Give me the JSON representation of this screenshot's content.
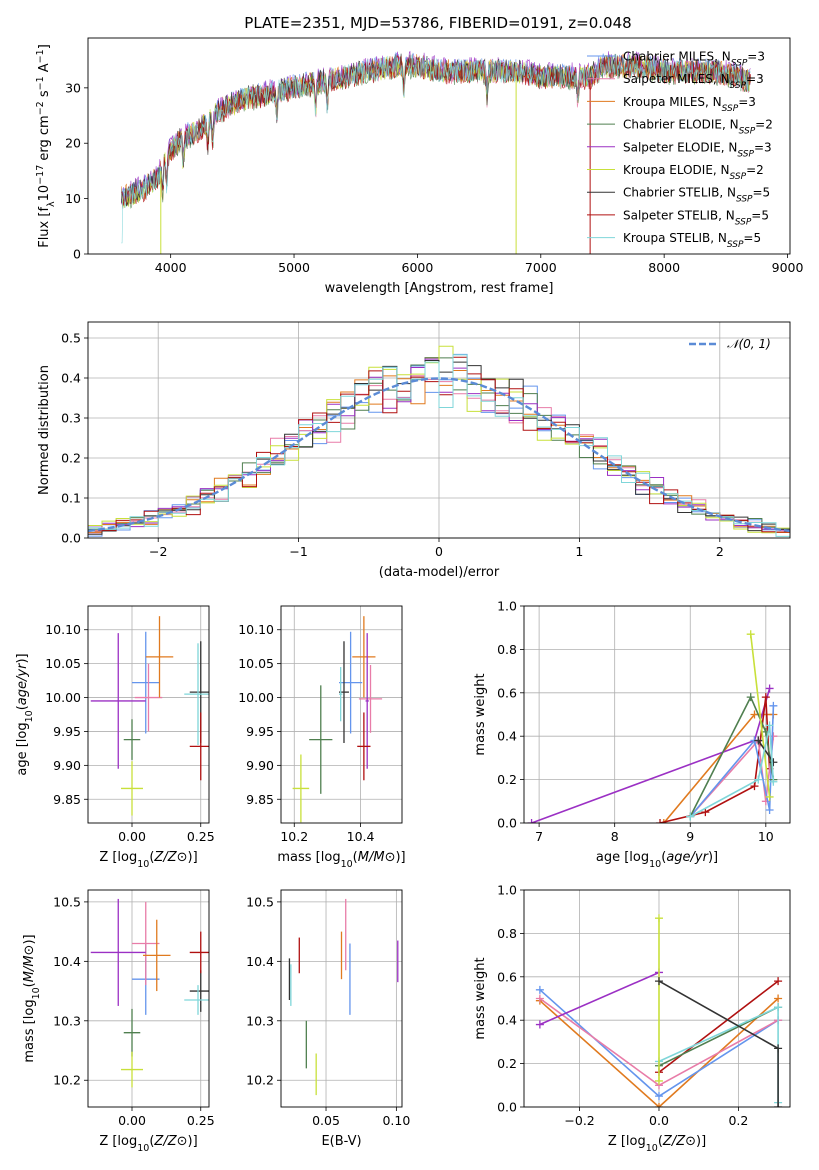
{
  "figure": {
    "title": "PLATE=2351, MJD=53786, FIBERID=0191, z=0.048"
  },
  "chart_data": [
    {
      "id": "spectrum",
      "type": "line",
      "title": "PLATE=2351, MJD=53786, FIBERID=0191, z=0.048",
      "xlabel": "wavelength [Angstrom, rest frame]",
      "ylabel": "Flux [f_λ 10^-17 erg cm^-2 s^-1 A^-1]",
      "xlim": [
        3330,
        9020
      ],
      "ylim": [
        0,
        39
      ],
      "xticks": [
        4000,
        5000,
        6000,
        7000,
        8000,
        9000
      ],
      "yticks": [
        0,
        10,
        20,
        30
      ],
      "grid": false,
      "legend_position": "top-right",
      "continuum": {
        "x": [
          3600,
          3700,
          3800,
          3900,
          4000,
          4100,
          4200,
          4300,
          4400,
          4500,
          4600,
          4800,
          5000,
          5200,
          5400,
          5600,
          5800,
          6000,
          6200,
          6400,
          6600,
          6800,
          7000,
          7200,
          7400,
          7500,
          7600,
          7800,
          8000,
          8200,
          8400,
          8600,
          8700
        ],
        "y": [
          10,
          11,
          12,
          14,
          19,
          21,
          22,
          24,
          26,
          27,
          28,
          29,
          30,
          31,
          32,
          33,
          34,
          34,
          33,
          33,
          33,
          33,
          32,
          32,
          32,
          34,
          34,
          34,
          33,
          33,
          33,
          32,
          31
        ]
      },
      "series": [
        {
          "name": "Chabrier MILES",
          "nssp": "3",
          "color": "#6495ed",
          "offset": 0.3
        },
        {
          "name": "Salpeter MILES",
          "nssp": "3",
          "color": "#e87ca8",
          "offset": -0.2
        },
        {
          "name": "Kroupa MILES",
          "nssp": "3",
          "color": "#e07a1f",
          "offset": 0.1
        },
        {
          "name": "Chabrier ELODIE",
          "nssp": "2",
          "color": "#4f7f4f",
          "offset": -0.4
        },
        {
          "name": "Salpeter ELODIE",
          "nssp": "3",
          "color": "#9b30c4",
          "offset": 0.5
        },
        {
          "name": "Kroupa ELODIE",
          "nssp": "2",
          "color": "#c8e03a",
          "offset": -0.1
        },
        {
          "name": "Chabrier STELIB",
          "nssp": "5",
          "color": "#333333",
          "offset": 0.2
        },
        {
          "name": "Salpeter STELIB",
          "nssp": "5",
          "color": "#b01010",
          "offset": -0.3
        },
        {
          "name": "Kroupa STELIB",
          "nssp": "5",
          "color": "#7fd6d9",
          "offset": 0.0
        }
      ],
      "drops": [
        {
          "x": 3920,
          "color": "#c8e03a"
        },
        {
          "x": 6800,
          "color": "#c8e03a"
        },
        {
          "x": 7400,
          "color": "#b01010"
        }
      ]
    },
    {
      "id": "residuals",
      "type": "line",
      "xlabel": "(data-model)/error",
      "ylabel": "Normed distribution",
      "xlim": [
        -2.5,
        2.5
      ],
      "ylim": [
        0,
        0.54
      ],
      "xticks": [
        -2,
        -1,
        0,
        1,
        2
      ],
      "yticks": [
        0.0,
        0.1,
        0.2,
        0.3,
        0.4,
        0.5
      ],
      "grid": true,
      "legend_position": "top-right",
      "gaussian_label": "𝒩(0, 1)",
      "gaussian_color": "#5b8bd6",
      "bin_width": 0.1
    },
    {
      "id": "age-vs-Z",
      "type": "scatter",
      "xlabel": "Z [log10(Z/Z⊙)]",
      "ylabel": "age [log10(age/yr)]",
      "xlim": [
        -0.16,
        0.28
      ],
      "ylim": [
        9.815,
        10.135
      ],
      "xticks": [
        0.0,
        0.25
      ],
      "xticklabels": [
        "0.00",
        "0.25"
      ],
      "yticks": [
        9.85,
        9.9,
        9.95,
        10.0,
        10.05,
        10.1
      ],
      "yticklabels": [
        "9.85",
        "9.90",
        "9.95",
        "10.00",
        "10.05",
        "10.10"
      ],
      "grid": true,
      "points": [
        {
          "color": "#6495ed",
          "x": 0.05,
          "xerr": 0.05,
          "y": 10.022,
          "yerr": 0.075
        },
        {
          "color": "#e87ca8",
          "x": 0.06,
          "xerr": 0.05,
          "y": 10.0,
          "yerr": 0.05
        },
        {
          "color": "#e07a1f",
          "x": 0.1,
          "xerr": 0.05,
          "y": 10.06,
          "yerr": 0.06
        },
        {
          "color": "#4f7f4f",
          "x": 0.0,
          "xerr": 0.03,
          "y": 9.938,
          "yerr": 0.03
        },
        {
          "color": "#9b30c4",
          "x": -0.05,
          "xerr": 0.1,
          "y": 9.995,
          "yerr": 0.1
        },
        {
          "color": "#c8e03a",
          "x": 0.0,
          "xerr": 0.04,
          "y": 9.866,
          "yerr": 0.04
        },
        {
          "color": "#333333",
          "x": 0.25,
          "xerr": 0.04,
          "y": 10.008,
          "yerr": 0.075
        },
        {
          "color": "#b01010",
          "x": 0.25,
          "xerr": 0.04,
          "y": 9.928,
          "yerr": 0.05
        },
        {
          "color": "#7fd6d9",
          "x": 0.24,
          "xerr": 0.05,
          "y": 10.005,
          "yerr": 0.075
        }
      ]
    },
    {
      "id": "age-vs-mass",
      "type": "scatter",
      "xlabel": "mass [log10(M/M⊙)]",
      "ylabel": "",
      "xlim": [
        10.16,
        10.525
      ],
      "ylim": [
        9.815,
        10.135
      ],
      "xticks": [
        10.2,
        10.4
      ],
      "xticklabels": [
        "10.2",
        "10.4"
      ],
      "yticks": [
        9.85,
        9.9,
        9.95,
        10.0,
        10.05,
        10.1
      ],
      "yticklabels": [
        "9.85",
        "9.90",
        "9.95",
        "10.00",
        "10.05",
        "10.10"
      ],
      "grid": true,
      "points": [
        {
          "color": "#6495ed",
          "x": 10.37,
          "xerr": 0.035,
          "y": 10.022,
          "yerr": 0.075
        },
        {
          "color": "#e87ca8",
          "x": 10.43,
          "xerr": 0.035,
          "y": 9.998,
          "yerr": 0.05
        },
        {
          "color": "#e07a1f",
          "x": 10.41,
          "xerr": 0.035,
          "y": 10.06,
          "yerr": 0.06
        },
        {
          "color": "#4f7f4f",
          "x": 10.28,
          "xerr": 0.035,
          "y": 9.938,
          "yerr": 0.08
        },
        {
          "color": "#9b30c4",
          "x": 10.42,
          "xerr": 0.005,
          "y": 9.995,
          "yerr": 0.1
        },
        {
          "color": "#c8e03a",
          "x": 10.22,
          "xerr": 0.025,
          "y": 9.866,
          "yerr": 0.05
        },
        {
          "color": "#333333",
          "x": 10.35,
          "xerr": 0.015,
          "y": 10.008,
          "yerr": 0.075
        },
        {
          "color": "#b01010",
          "x": 10.41,
          "xerr": 0.02,
          "y": 9.928,
          "yerr": 0.05
        },
        {
          "color": "#7fd6d9",
          "x": 10.34,
          "xerr": 0.005,
          "y": 10.005,
          "yerr": 0.04
        }
      ]
    },
    {
      "id": "weight-vs-age",
      "type": "line",
      "xlabel": "age [log10(age/yr)]",
      "ylabel": "mass weight",
      "xlim": [
        6.8,
        10.32
      ],
      "ylim": [
        0,
        1
      ],
      "xticks": [
        7,
        8,
        9,
        10
      ],
      "xticklabels": [
        "7",
        "8",
        "9",
        "10"
      ],
      "yticks": [
        0.0,
        0.2,
        0.4,
        0.6,
        0.8,
        1.0
      ],
      "yticklabels": [
        "0.0",
        "0.2",
        "0.4",
        "0.6",
        "0.8",
        "1.0"
      ],
      "grid": true,
      "series": [
        {
          "color": "#e07a1f",
          "x": [
            8.65,
            9.85,
            10.1
          ],
          "y": [
            0.0,
            0.5,
            0.5
          ]
        },
        {
          "color": "#9b30c4",
          "x": [
            6.9,
            9.85,
            10.05
          ],
          "y": [
            0.0,
            0.38,
            0.62
          ]
        },
        {
          "color": "#b01010",
          "x": [
            8.6,
            9.2,
            9.85,
            10.0,
            10.05
          ],
          "y": [
            0.0,
            0.05,
            0.17,
            0.58,
            0.25
          ]
        },
        {
          "color": "#e87ca8",
          "x": [
            9.0,
            9.9,
            10.0,
            10.1
          ],
          "y": [
            0.03,
            0.38,
            0.1,
            0.4
          ]
        },
        {
          "color": "#6495ed",
          "x": [
            9.0,
            9.85,
            10.05,
            10.1
          ],
          "y": [
            0.03,
            0.38,
            0.06,
            0.54
          ]
        },
        {
          "color": "#4f7f4f",
          "x": [
            9.0,
            9.8,
            10.0,
            10.1
          ],
          "y": [
            0.03,
            0.58,
            0.42,
            0.2
          ]
        },
        {
          "color": "#c8e03a",
          "x": [
            9.8,
            10.05
          ],
          "y": [
            0.87,
            0.12
          ]
        },
        {
          "color": "#333333",
          "x": [
            9.9,
            10.1
          ],
          "y": [
            0.38,
            0.28
          ]
        },
        {
          "color": "#7fd6d9",
          "x": [
            9.0,
            9.9,
            10.05,
            10.1
          ],
          "y": [
            0.03,
            0.2,
            0.45,
            0.19
          ]
        }
      ]
    },
    {
      "id": "mass-vs-Z",
      "type": "scatter",
      "xlabel": "Z [log10(Z/Z⊙)]",
      "ylabel": "mass [log10(M/M⊙)]",
      "xlim": [
        -0.16,
        0.28
      ],
      "ylim": [
        10.155,
        10.52
      ],
      "xticks": [
        0.0,
        0.25
      ],
      "xticklabels": [
        "0.00",
        "0.25"
      ],
      "yticks": [
        10.2,
        10.3,
        10.4,
        10.5
      ],
      "yticklabels": [
        "10.2",
        "10.3",
        "10.4",
        "10.5"
      ],
      "grid": true,
      "points": [
        {
          "color": "#6495ed",
          "x": 0.05,
          "xerr": 0.05,
          "y": 10.37,
          "yerr": 0.06
        },
        {
          "color": "#e87ca8",
          "x": 0.05,
          "xerr": 0.05,
          "y": 10.43,
          "yerr": 0.07
        },
        {
          "color": "#e07a1f",
          "x": 0.09,
          "xerr": 0.05,
          "y": 10.41,
          "yerr": 0.06
        },
        {
          "color": "#4f7f4f",
          "x": 0.0,
          "xerr": 0.03,
          "y": 10.28,
          "yerr": 0.04
        },
        {
          "color": "#9b30c4",
          "x": -0.05,
          "xerr": 0.1,
          "y": 10.415,
          "yerr": 0.09
        },
        {
          "color": "#c8e03a",
          "x": 0.0,
          "xerr": 0.04,
          "y": 10.218,
          "yerr": 0.03
        },
        {
          "color": "#333333",
          "x": 0.25,
          "xerr": 0.04,
          "y": 10.35,
          "yerr": 0.035
        },
        {
          "color": "#b01010",
          "x": 0.25,
          "xerr": 0.04,
          "y": 10.415,
          "yerr": 0.035
        },
        {
          "color": "#7fd6d9",
          "x": 0.24,
          "xerr": 0.05,
          "y": 10.335,
          "yerr": 0.025
        }
      ]
    },
    {
      "id": "mass-vs-EBV",
      "type": "scatter",
      "xlabel": "E(B-V)",
      "ylabel": "",
      "xlim": [
        0.018,
        0.104
      ],
      "ylim": [
        10.155,
        10.52
      ],
      "xticks": [
        0.05,
        0.1
      ],
      "xticklabels": [
        "0.05",
        "0.10"
      ],
      "yticks": [
        10.2,
        10.3,
        10.4,
        10.5
      ],
      "yticklabels": [
        "10.2",
        "10.3",
        "10.4",
        "10.5"
      ],
      "grid": true,
      "points": [
        {
          "color": "#6495ed",
          "x": 0.067,
          "y": 10.37,
          "yerr": 0.06
        },
        {
          "color": "#e87ca8",
          "x": 0.064,
          "y": 10.445,
          "yerr": 0.06
        },
        {
          "color": "#e07a1f",
          "x": 0.061,
          "y": 10.41,
          "yerr": 0.04
        },
        {
          "color": "#4f7f4f",
          "x": 0.036,
          "y": 10.26,
          "yerr": 0.04
        },
        {
          "color": "#9b30c4",
          "x": 0.101,
          "y": 10.4,
          "yerr": 0.035
        },
        {
          "color": "#c8e03a",
          "x": 0.043,
          "y": 10.21,
          "yerr": 0.035
        },
        {
          "color": "#333333",
          "x": 0.024,
          "y": 10.37,
          "yerr": 0.035
        },
        {
          "color": "#b01010",
          "x": 0.031,
          "y": 10.41,
          "yerr": 0.03
        },
        {
          "color": "#7fd6d9",
          "x": 0.025,
          "y": 10.36,
          "yerr": 0.035
        }
      ]
    },
    {
      "id": "weight-vs-Z",
      "type": "line",
      "xlabel": "Z [log10(Z/Z⊙)]",
      "ylabel": "mass weight",
      "xlim": [
        -0.34,
        0.33
      ],
      "ylim": [
        0,
        1
      ],
      "xticks": [
        -0.2,
        0.0,
        0.2
      ],
      "xticklabels": [
        "−0.2",
        "0.0",
        "0.2"
      ],
      "yticks": [
        0.0,
        0.2,
        0.4,
        0.6,
        0.8,
        1.0
      ],
      "yticklabels": [
        "0.0",
        "0.2",
        "0.4",
        "0.6",
        "0.8",
        "1.0"
      ],
      "grid": true,
      "series": [
        {
          "color": "#e07a1f",
          "x": [
            -0.3,
            0.0,
            0.3
          ],
          "y": [
            0.49,
            0.0,
            0.5
          ]
        },
        {
          "color": "#6495ed",
          "x": [
            -0.3,
            0.0,
            0.3
          ],
          "y": [
            0.54,
            0.05,
            0.4
          ]
        },
        {
          "color": "#e87ca8",
          "x": [
            -0.3,
            0.0,
            0.3
          ],
          "y": [
            0.5,
            0.1,
            0.4
          ]
        },
        {
          "color": "#9b30c4",
          "x": [
            -0.3,
            0.0
          ],
          "y": [
            0.38,
            0.62
          ]
        },
        {
          "color": "#b01010",
          "x": [
            0.0,
            0.3
          ],
          "y": [
            0.16,
            0.58
          ]
        },
        {
          "color": "#4f7f4f",
          "x": [
            0.0,
            0.3
          ],
          "y": [
            0.19,
            0.46
          ]
        },
        {
          "color": "#7fd6d9",
          "x": [
            0.0,
            0.3,
            0.3
          ],
          "y": [
            0.21,
            0.46,
            0.02
          ]
        },
        {
          "color": "#c8e03a",
          "x": [
            0.0,
            0.0
          ],
          "y": [
            0.87,
            0.12
          ]
        },
        {
          "color": "#333333",
          "x": [
            0.0,
            0.3,
            0.3
          ],
          "y": [
            0.58,
            0.27,
            0.0
          ]
        }
      ]
    }
  ]
}
